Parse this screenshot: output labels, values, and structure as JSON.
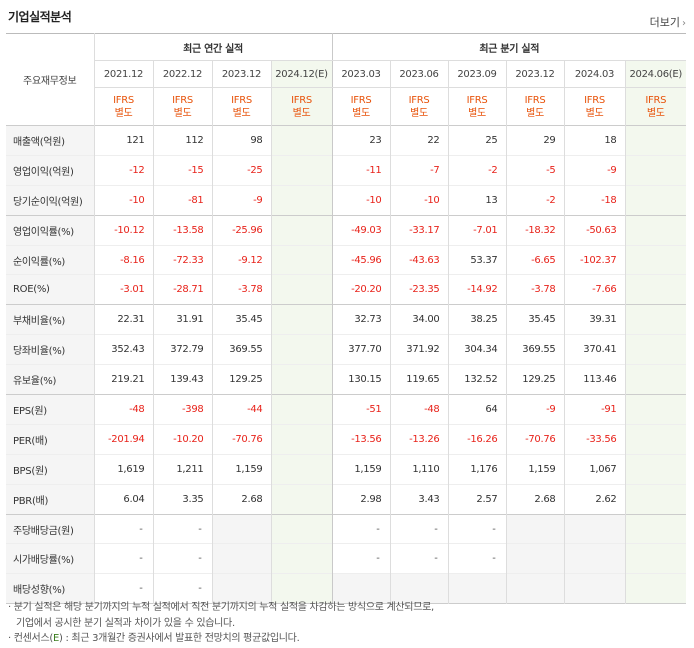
{
  "title": "기업실적분석",
  "more_label": "더보기",
  "header": {
    "corner_label": "주요재무정보",
    "annual_group": "최근 연간 실적",
    "quarter_group": "최근 분기 실적",
    "annual_periods": [
      "2021.12",
      "2022.12",
      "2023.12",
      "2024.12(E)"
    ],
    "quarter_periods": [
      "2023.03",
      "2023.06",
      "2023.09",
      "2023.12",
      "2024.03",
      "2024.06(E)"
    ],
    "ifrs_top": "IFRS",
    "ifrs_bottom": "별도"
  },
  "rows": [
    {
      "label": "매출액(억원)",
      "annual": [
        "121",
        "112",
        "98",
        ""
      ],
      "quarter": [
        "23",
        "22",
        "25",
        "29",
        "18",
        ""
      ]
    },
    {
      "label": "영업이익(억원)",
      "annual": [
        "-12",
        "-15",
        "-25",
        ""
      ],
      "quarter": [
        "-11",
        "-7",
        "-2",
        "-5",
        "-9",
        ""
      ]
    },
    {
      "label": "당기순이익(억원)",
      "annual": [
        "-10",
        "-81",
        "-9",
        ""
      ],
      "quarter": [
        "-10",
        "-10",
        "13",
        "-2",
        "-18",
        ""
      ]
    },
    {
      "label": "영업이익률(%)",
      "annual": [
        "-10.12",
        "-13.58",
        "-25.96",
        ""
      ],
      "quarter": [
        "-49.03",
        "-33.17",
        "-7.01",
        "-18.32",
        "-50.63",
        ""
      ]
    },
    {
      "label": "순이익률(%)",
      "annual": [
        "-8.16",
        "-72.33",
        "-9.12",
        ""
      ],
      "quarter": [
        "-45.96",
        "-43.63",
        "53.37",
        "-6.65",
        "-102.37",
        ""
      ]
    },
    {
      "label": "ROE(%)",
      "annual": [
        "-3.01",
        "-28.71",
        "-3.78",
        ""
      ],
      "quarter": [
        "-20.20",
        "-23.35",
        "-14.92",
        "-3.78",
        "-7.66",
        ""
      ]
    },
    {
      "label": "부채비율(%)",
      "annual": [
        "22.31",
        "31.91",
        "35.45",
        ""
      ],
      "quarter": [
        "32.73",
        "34.00",
        "38.25",
        "35.45",
        "39.31",
        ""
      ]
    },
    {
      "label": "당좌비율(%)",
      "annual": [
        "352.43",
        "372.79",
        "369.55",
        ""
      ],
      "quarter": [
        "377.70",
        "371.92",
        "304.34",
        "369.55",
        "370.41",
        ""
      ]
    },
    {
      "label": "유보율(%)",
      "annual": [
        "219.21",
        "139.43",
        "129.25",
        ""
      ],
      "quarter": [
        "130.15",
        "119.65",
        "132.52",
        "129.25",
        "113.46",
        ""
      ]
    },
    {
      "label": "EPS(원)",
      "annual": [
        "-48",
        "-398",
        "-44",
        ""
      ],
      "quarter": [
        "-51",
        "-48",
        "64",
        "-9",
        "-91",
        ""
      ]
    },
    {
      "label": "PER(배)",
      "annual": [
        "-201.94",
        "-10.20",
        "-70.76",
        ""
      ],
      "quarter": [
        "-13.56",
        "-13.26",
        "-16.26",
        "-70.76",
        "-33.56",
        ""
      ]
    },
    {
      "label": "BPS(원)",
      "annual": [
        "1,619",
        "1,211",
        "1,159",
        ""
      ],
      "quarter": [
        "1,159",
        "1,110",
        "1,176",
        "1,159",
        "1,067",
        ""
      ]
    },
    {
      "label": "PBR(배)",
      "annual": [
        "6.04",
        "3.35",
        "2.68",
        ""
      ],
      "quarter": [
        "2.98",
        "3.43",
        "2.57",
        "2.68",
        "2.62",
        ""
      ]
    },
    {
      "label": "주당배당금(원)",
      "annual": [
        "-",
        "-",
        "",
        ""
      ],
      "quarter": [
        "-",
        "-",
        "-",
        "",
        "",
        ""
      ]
    },
    {
      "label": "시가배당률(%)",
      "annual": [
        "-",
        "-",
        "",
        ""
      ],
      "quarter": [
        "-",
        "-",
        "-",
        "",
        "",
        ""
      ]
    },
    {
      "label": "배당성향(%)",
      "annual": [
        "-",
        "-",
        "",
        ""
      ],
      "quarter": [
        "",
        "",
        "",
        "",
        "",
        ""
      ]
    }
  ],
  "notes": {
    "line1": "· 분기 실적은 해당 분기까지의 누적 실적에서 직전 분기까지의 누적 실적을 차감하는 방식으로 계산되므로,",
    "line2": "기업에서 공시한 분기 실적과 차이가 있을 수 있습니다.",
    "line3_prefix": "· 컨센서스(",
    "line3_e": "E",
    "line3_suffix": ") : 최근 3개월간 증권사에서 발표한 전망치의 평균값입니다."
  },
  "colors": {
    "negative": "#e8231b",
    "ifrs": "#e8540c",
    "estimate_bg": "#f3f8ee",
    "label_bg": "#f5f5f5"
  }
}
